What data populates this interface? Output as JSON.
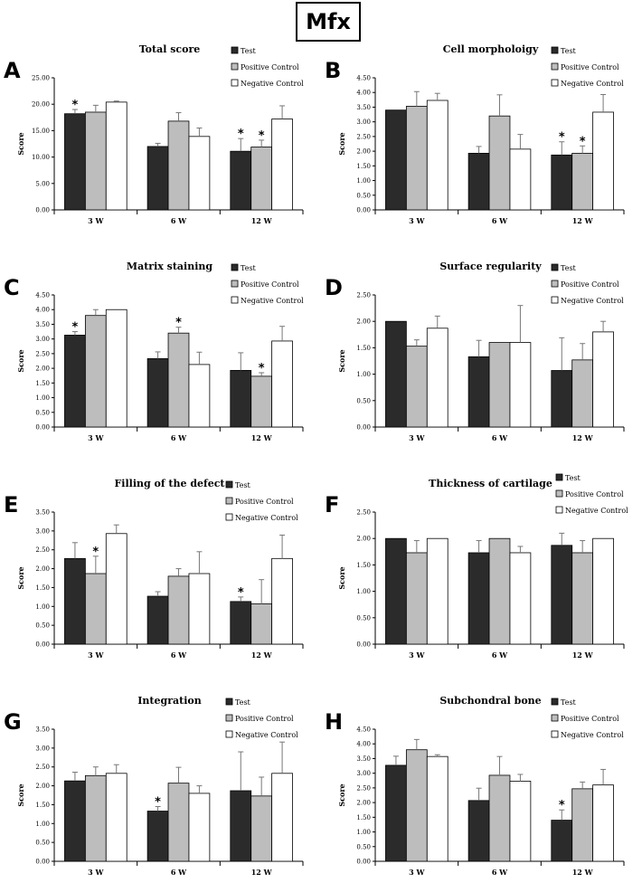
{
  "banner": {
    "label": "Mfx"
  },
  "colors": {
    "test": "#2b2b2b",
    "positive": "#bdbdbd",
    "negative": "#ffffff",
    "outline": "#000000"
  },
  "legend": [
    "Test",
    "Positive Control",
    "Negative Control"
  ],
  "chart_data": [
    {
      "letter": "A",
      "type": "bar",
      "title": "Total score",
      "ylabel": "Score",
      "categories": [
        "3 W",
        "6 W",
        "12 W"
      ],
      "ylim": [
        0,
        25
      ],
      "yticks": [
        "0.00",
        "5.00",
        "10.00",
        "15.00",
        "20.00",
        "25.00"
      ],
      "series": [
        {
          "name": "Test",
          "values": [
            18.2,
            12.0,
            11.1
          ],
          "errors": [
            0.8,
            0.6,
            2.4
          ],
          "sig": [
            true,
            false,
            true
          ]
        },
        {
          "name": "Positive Control",
          "values": [
            18.5,
            16.8,
            11.9
          ],
          "errors": [
            1.3,
            1.6,
            1.3
          ],
          "sig": [
            false,
            false,
            true
          ]
        },
        {
          "name": "Negative Control",
          "values": [
            20.4,
            13.9,
            17.2
          ],
          "errors": [
            0.2,
            1.6,
            2.5
          ],
          "sig": [
            false,
            false,
            false
          ]
        }
      ]
    },
    {
      "letter": "B",
      "type": "bar",
      "title": "Cell morpholoigy",
      "ylabel": "Score",
      "categories": [
        "3 W",
        "6 W",
        "12 W"
      ],
      "ylim": [
        0,
        4.5
      ],
      "yticks": [
        "0.00",
        "0.50",
        "1.00",
        "1.50",
        "2.00",
        "2.50",
        "3.00",
        "3.50",
        "4.00",
        "4.50"
      ],
      "series": [
        {
          "name": "Test",
          "values": [
            3.4,
            1.93,
            1.87
          ],
          "errors": [
            0,
            0.23,
            0.45
          ],
          "sig": [
            false,
            false,
            true
          ]
        },
        {
          "name": "Positive Control",
          "values": [
            3.53,
            3.2,
            1.93
          ],
          "errors": [
            0.5,
            0.72,
            0.25
          ],
          "sig": [
            false,
            false,
            true
          ]
        },
        {
          "name": "Negative Control",
          "values": [
            3.73,
            2.07,
            3.33
          ],
          "errors": [
            0.24,
            0.5,
            0.6
          ],
          "sig": [
            false,
            false,
            false
          ]
        }
      ]
    },
    {
      "letter": "C",
      "type": "bar",
      "title": "Matrix staining",
      "ylabel": "Score",
      "categories": [
        "3 W",
        "6 W",
        "12 W"
      ],
      "ylim": [
        0,
        4.5
      ],
      "yticks": [
        "0.00",
        "0.50",
        "1.00",
        "1.50",
        "2.00",
        "2.50",
        "3.00",
        "3.50",
        "4.00",
        "4.50"
      ],
      "series": [
        {
          "name": "Test",
          "values": [
            3.13,
            2.33,
            1.93
          ],
          "errors": [
            0.12,
            0.23,
            0.6
          ],
          "sig": [
            true,
            false,
            false
          ]
        },
        {
          "name": "Positive Control",
          "values": [
            3.8,
            3.2,
            1.73
          ],
          "errors": [
            0.2,
            0.2,
            0.12
          ],
          "sig": [
            false,
            true,
            true
          ]
        },
        {
          "name": "Negative Control",
          "values": [
            4.0,
            2.13,
            2.93
          ],
          "errors": [
            0,
            0.42,
            0.5
          ],
          "sig": [
            false,
            false,
            false
          ]
        }
      ]
    },
    {
      "letter": "D",
      "type": "bar",
      "title": "Surface regularity",
      "ylabel": "Score",
      "categories": [
        "3 W",
        "6 W",
        "12 W"
      ],
      "ylim": [
        0,
        2.5
      ],
      "yticks": [
        "0.00",
        "0.50",
        "1.00",
        "1.50",
        "2.00",
        "2.50"
      ],
      "series": [
        {
          "name": "Test",
          "values": [
            2.0,
            1.33,
            1.07
          ],
          "errors": [
            0,
            0.31,
            0.62
          ],
          "sig": [
            false,
            false,
            false
          ]
        },
        {
          "name": "Positive Control",
          "values": [
            1.53,
            1.6,
            1.27
          ],
          "errors": [
            0.12,
            0,
            0.31
          ],
          "sig": [
            false,
            false,
            false
          ]
        },
        {
          "name": "Negative Control",
          "values": [
            1.87,
            1.6,
            1.8
          ],
          "errors": [
            0.23,
            0.7,
            0.2
          ],
          "sig": [
            false,
            false,
            false
          ]
        }
      ]
    },
    {
      "letter": "E",
      "type": "bar",
      "title": "Filling of the defect",
      "ylabel": "Score",
      "categories": [
        "3 W",
        "6 W",
        "12 W"
      ],
      "ylim": [
        0,
        3.5
      ],
      "yticks": [
        "0.00",
        "0.50",
        "1.00",
        "1.50",
        "2.00",
        "2.50",
        "3.00",
        "3.50"
      ],
      "series": [
        {
          "name": "Test",
          "values": [
            2.27,
            1.27,
            1.13
          ],
          "errors": [
            0.42,
            0.12,
            0.12
          ],
          "sig": [
            false,
            false,
            true
          ]
        },
        {
          "name": "Positive Control",
          "values": [
            1.87,
            1.8,
            1.07
          ],
          "errors": [
            0.46,
            0.2,
            0.64
          ],
          "sig": [
            true,
            false,
            false
          ]
        },
        {
          "name": "Negative Control",
          "values": [
            2.93,
            1.87,
            2.27
          ],
          "errors": [
            0.23,
            0.58,
            0.62
          ],
          "sig": [
            false,
            false,
            false
          ]
        }
      ]
    },
    {
      "letter": "F",
      "type": "bar",
      "title": "Thickness of cartilage",
      "ylabel": "Score",
      "categories": [
        "3 W",
        "6 W",
        "12 W"
      ],
      "ylim": [
        0,
        2.5
      ],
      "yticks": [
        "0.00",
        "0.50",
        "1.00",
        "1.50",
        "2.00",
        "2.50"
      ],
      "series": [
        {
          "name": "Test",
          "values": [
            2.0,
            1.73,
            1.87
          ],
          "errors": [
            0,
            0.23,
            0.23
          ],
          "sig": [
            false,
            false,
            false
          ]
        },
        {
          "name": "Positive Control",
          "values": [
            1.73,
            2.0,
            1.73
          ],
          "errors": [
            0.23,
            0,
            0.23
          ],
          "sig": [
            false,
            false,
            false
          ]
        },
        {
          "name": "Negative Control",
          "values": [
            2.0,
            1.73,
            2.0
          ],
          "errors": [
            0,
            0.12,
            0
          ],
          "sig": [
            false,
            false,
            false
          ]
        }
      ]
    },
    {
      "letter": "G",
      "type": "bar",
      "title": "Integration",
      "ylabel": "Score",
      "categories": [
        "3 W",
        "6 W",
        "12 W"
      ],
      "ylim": [
        0,
        3.5
      ],
      "yticks": [
        "0.00",
        "0.50",
        "1.00",
        "1.50",
        "2.00",
        "2.50",
        "3.00",
        "3.50"
      ],
      "series": [
        {
          "name": "Test",
          "values": [
            2.13,
            1.33,
            1.87
          ],
          "errors": [
            0.23,
            0.12,
            1.03
          ],
          "sig": [
            false,
            true,
            false
          ]
        },
        {
          "name": "Positive Control",
          "values": [
            2.27,
            2.07,
            1.73
          ],
          "errors": [
            0.23,
            0.42,
            0.5
          ],
          "sig": [
            false,
            false,
            false
          ]
        },
        {
          "name": "Negative Control",
          "values": [
            2.33,
            1.8,
            2.33
          ],
          "errors": [
            0.23,
            0.2,
            0.83
          ],
          "sig": [
            false,
            false,
            false
          ]
        }
      ]
    },
    {
      "letter": "H",
      "type": "bar",
      "title": "Subchondral bone",
      "ylabel": "Score",
      "categories": [
        "3 W",
        "6 W",
        "12 W"
      ],
      "ylim": [
        0,
        4.5
      ],
      "yticks": [
        "0.00",
        "0.50",
        "1.00",
        "1.50",
        "2.00",
        "2.50",
        "3.00",
        "3.50",
        "4.00",
        "4.50"
      ],
      "series": [
        {
          "name": "Test",
          "values": [
            3.27,
            2.07,
            1.4
          ],
          "errors": [
            0.31,
            0.42,
            0.35
          ],
          "sig": [
            false,
            false,
            true
          ]
        },
        {
          "name": "Positive Control",
          "values": [
            3.8,
            2.93,
            2.47
          ],
          "errors": [
            0.35,
            0.64,
            0.23
          ],
          "sig": [
            false,
            false,
            false
          ]
        },
        {
          "name": "Negative Control",
          "values": [
            3.57,
            2.73,
            2.6
          ],
          "errors": [
            0.06,
            0.23,
            0.53
          ],
          "sig": [
            false,
            false,
            false
          ]
        }
      ]
    }
  ]
}
